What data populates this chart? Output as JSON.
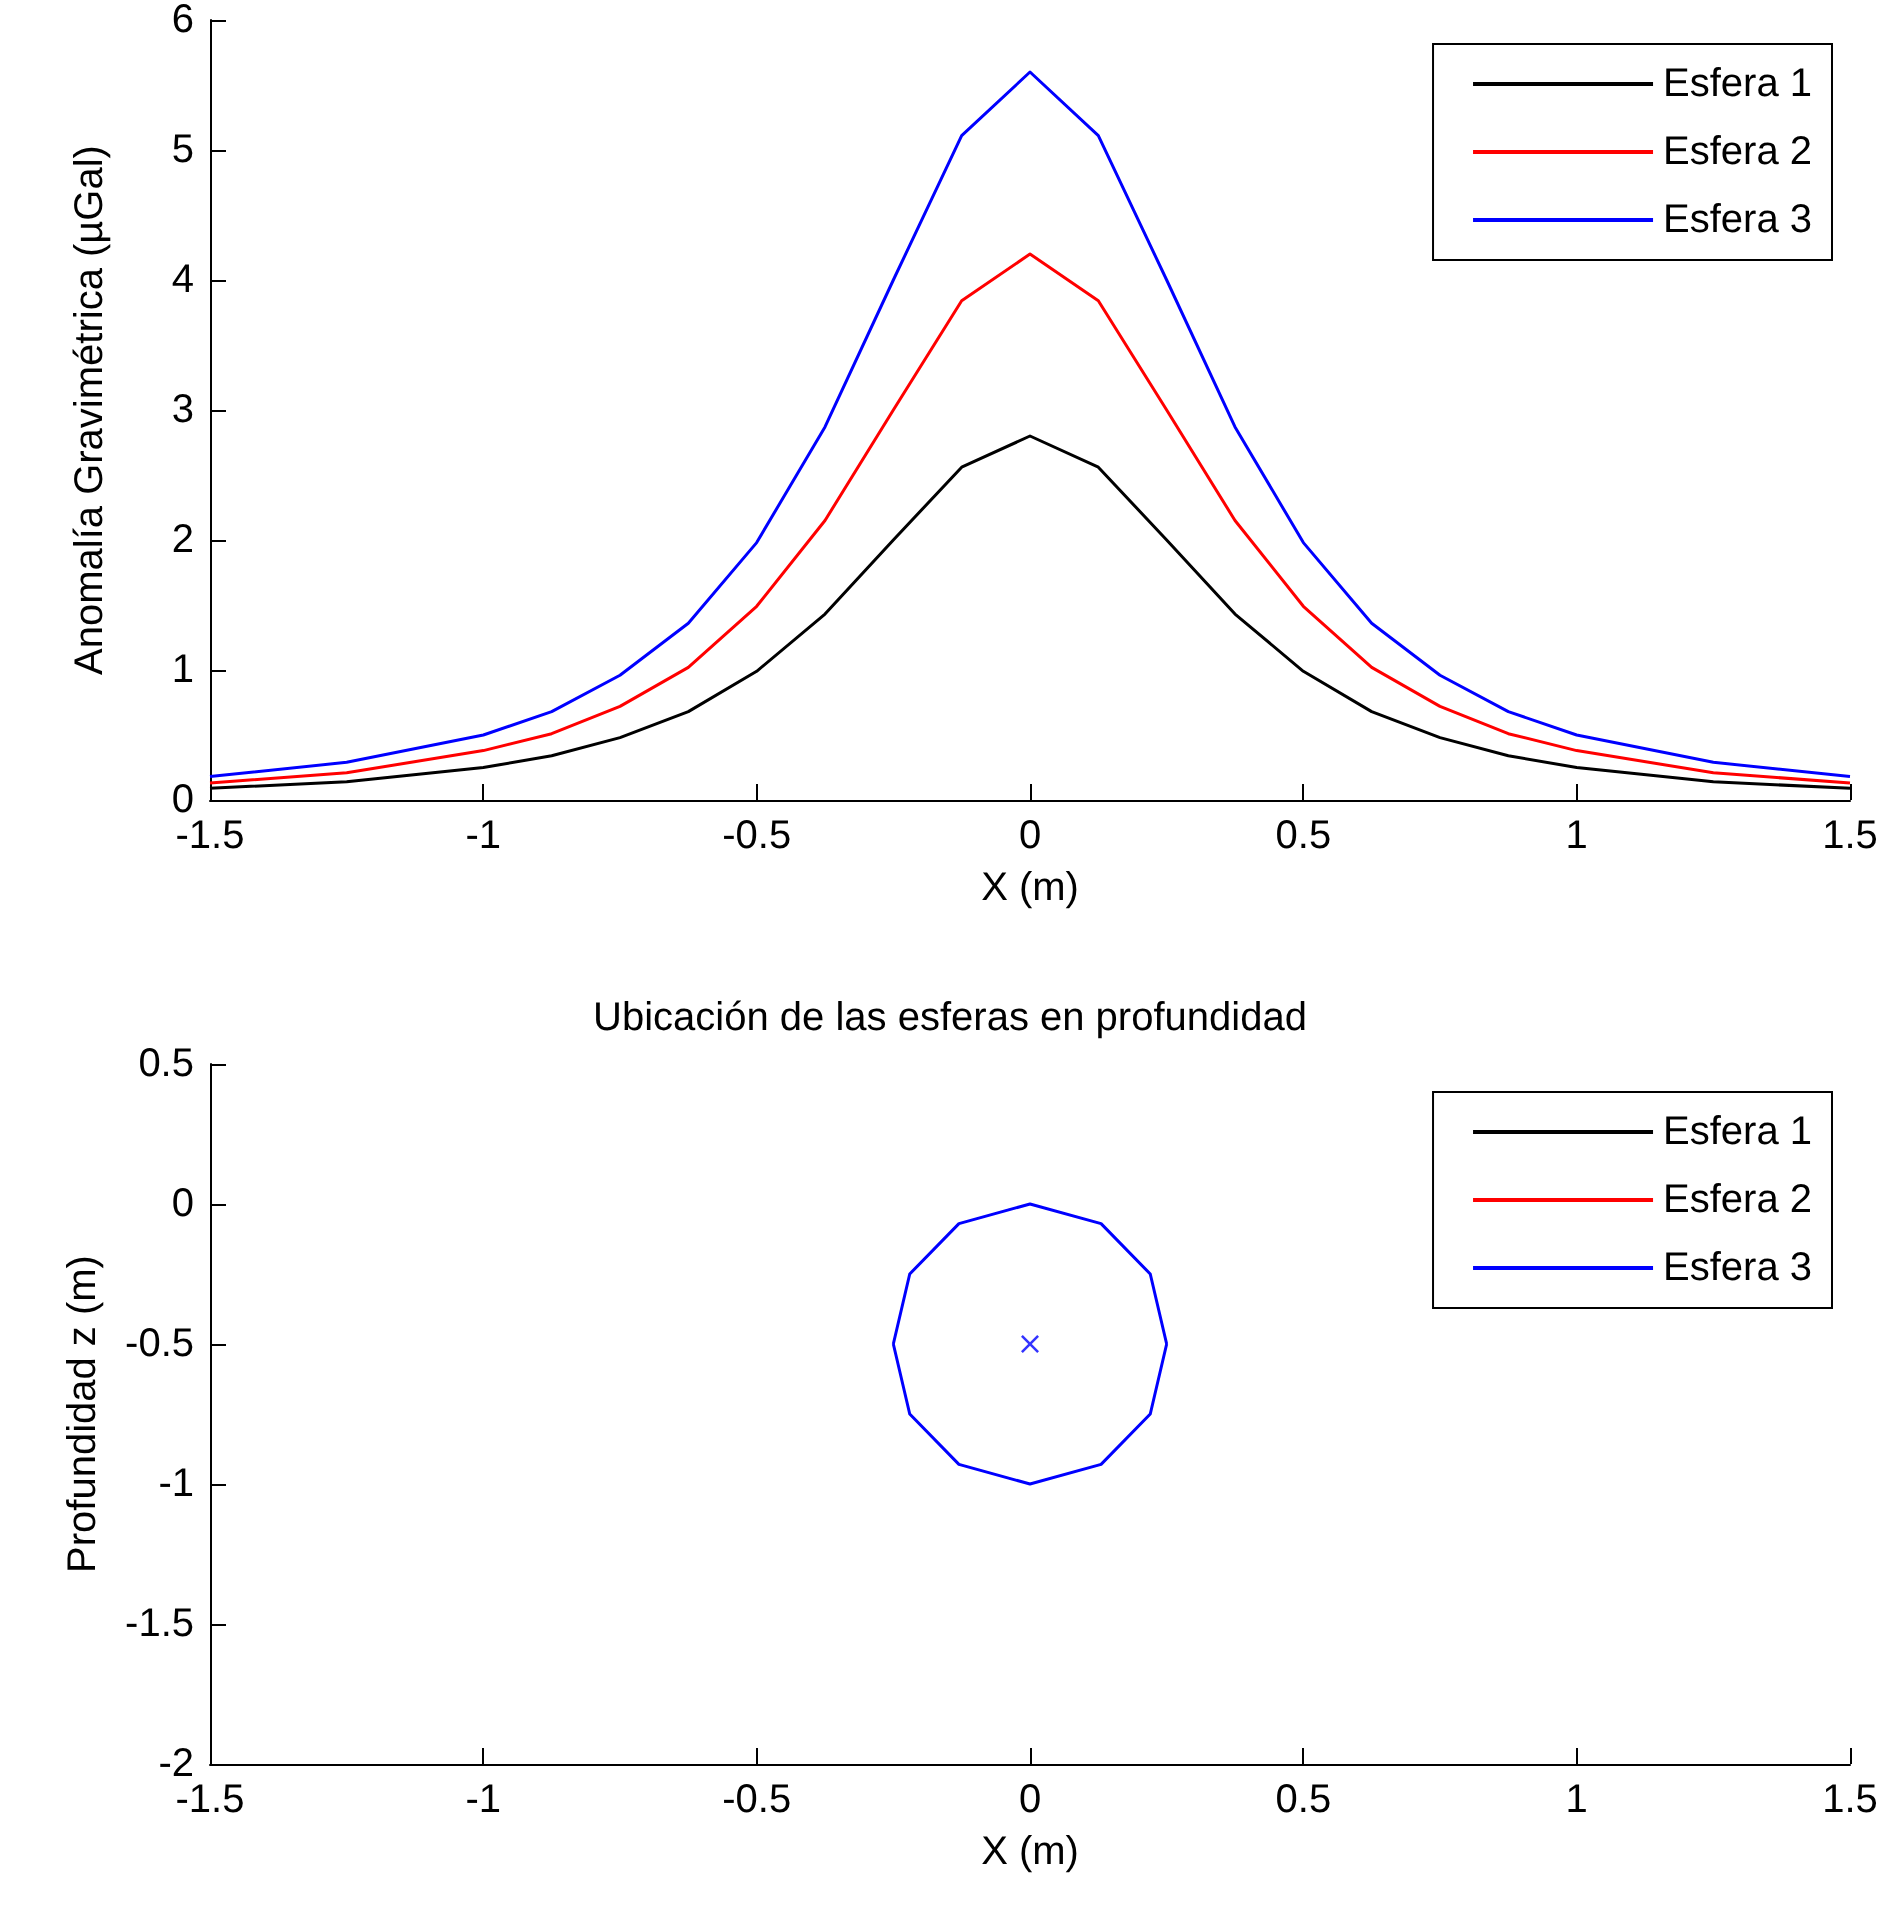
{
  "chart_data": [
    {
      "type": "line",
      "xlabel": "X (m)",
      "ylabel": "Anomalía Gravimétrica (µGal)",
      "xlim": [
        -1.5,
        1.5
      ],
      "xticks": [
        -1.5,
        -1,
        -0.5,
        0,
        0.5,
        1,
        1.5
      ],
      "ylim": [
        0,
        6
      ],
      "yticks": [
        0,
        1,
        2,
        3,
        4,
        5,
        6
      ],
      "legend": "top right",
      "grid": false,
      "marker": "none",
      "x": [
        -1.5,
        -1.25,
        -1,
        -0.875,
        -0.75,
        -0.625,
        -0.5,
        -0.375,
        -0.25,
        -0.125,
        0,
        0.125,
        0.25,
        0.375,
        0.5,
        0.625,
        0.75,
        0.875,
        1,
        1.25,
        1.5
      ],
      "series": [
        {
          "name": "Esfera 1",
          "color": "#000000",
          "values": [
            0.09,
            0.14,
            0.25,
            0.34,
            0.48,
            0.68,
            0.99,
            1.43,
            2.0,
            2.56,
            2.8,
            2.56,
            2.0,
            1.43,
            0.99,
            0.68,
            0.48,
            0.34,
            0.25,
            0.14,
            0.09
          ]
        },
        {
          "name": "Esfera 2",
          "color": "#ff0000",
          "values": [
            0.13,
            0.21,
            0.38,
            0.51,
            0.72,
            1.02,
            1.49,
            2.15,
            3.0,
            3.84,
            4.2,
            3.84,
            3.0,
            2.15,
            1.49,
            1.02,
            0.72,
            0.51,
            0.38,
            0.21,
            0.13
          ]
        },
        {
          "name": "Esfera 3",
          "color": "#0000ff",
          "values": [
            0.18,
            0.29,
            0.5,
            0.68,
            0.96,
            1.36,
            1.98,
            2.87,
            4.0,
            5.11,
            5.6,
            5.11,
            4.0,
            2.87,
            1.98,
            1.36,
            0.96,
            0.68,
            0.5,
            0.29,
            0.18
          ]
        }
      ]
    },
    {
      "type": "line",
      "title": "Ubicación de las esferas en profundidad",
      "xlabel": "X (m)",
      "ylabel": "Profundidad z (m)",
      "xlim": [
        -1.5,
        1.5
      ],
      "xticks": [
        -1.5,
        -1,
        -0.5,
        0,
        0.5,
        1,
        1.5
      ],
      "ylim": [
        -2,
        0.5
      ],
      "yticks": [
        -2,
        -1.5,
        -1,
        -0.5,
        0,
        0.5
      ],
      "legend": "top right",
      "grid": false,
      "marker": "none",
      "series": [
        {
          "name": "Esfera 1",
          "color": "#000000"
        },
        {
          "name": "Esfera 2",
          "color": "#ff0000"
        },
        {
          "name": "Esfera 3",
          "color": "#0000ff",
          "x": [
            -0.25,
            -0.22,
            -0.13,
            0,
            0.13,
            0.22,
            0.25
          ],
          "values": [
            -0.5,
            -0.25,
            -0.07,
            0,
            -0.07,
            -0.25,
            -0.5
          ]
        },
        {
          "color": "#0000ff",
          "x": [
            -0.25,
            -0.22,
            -0.13,
            0,
            0.13,
            0.22,
            0.25
          ],
          "values": [
            -0.5,
            -0.75,
            -0.93,
            -1,
            -0.93,
            -0.75,
            -0.5
          ]
        },
        {
          "type": "scatter",
          "color": "#0000ff",
          "marker": "cross",
          "x": [
            0
          ],
          "values": [
            -0.5
          ]
        }
      ]
    }
  ]
}
